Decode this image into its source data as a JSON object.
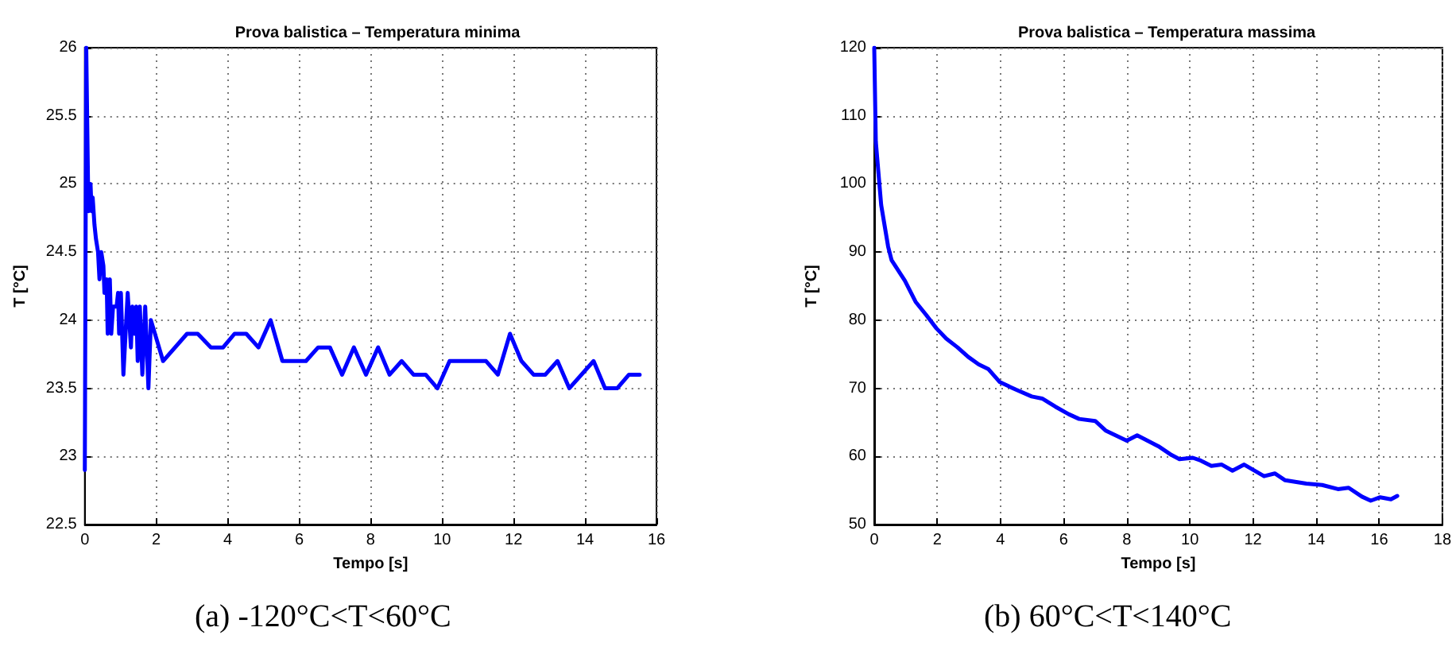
{
  "chart_data": [
    {
      "type": "line",
      "title": "Prova balistica – Temperatura minima",
      "xlabel": "Tempo [s]",
      "ylabel": "T [°C]",
      "annotations": [
        "(a) -120°C<T<60°C"
      ],
      "xlim": [
        0,
        16
      ],
      "xticks": [
        0,
        2,
        4,
        6,
        8,
        10,
        12,
        14,
        16
      ],
      "ylim": [
        22.5,
        26
      ],
      "yticks": [
        22.5,
        23,
        23.5,
        24,
        24.5,
        25,
        25.5,
        26
      ],
      "grid": true,
      "marker": "none",
      "line_style": "solid",
      "series": [
        {
          "color": "#0000ff",
          "x": [
            0,
            0.04,
            0.1,
            0.16,
            0.19,
            0.22,
            0.27,
            0.31,
            0.37,
            0.41,
            0.46,
            0.52,
            0.55,
            0.61,
            0.64,
            0.7,
            0.74,
            0.79,
            0.89,
            0.93,
            0.96,
            1.01,
            1.08,
            1.2,
            1.29,
            1.33,
            1.39,
            1.44,
            1.48,
            1.54,
            1.61,
            1.69,
            1.78,
            1.85,
            2.19,
            2.86,
            3.16,
            3.53,
            3.87,
            4.19,
            4.52,
            4.86,
            5.2,
            5.53,
            6.19,
            6.53,
            6.86,
            7.2,
            7.53,
            7.87,
            8.21,
            8.53,
            8.87,
            9.2,
            9.54,
            9.87,
            10.21,
            11.23,
            11.56,
            11.9,
            12.22,
            12.56,
            12.89,
            13.23,
            13.56,
            14.24,
            14.56,
            14.9,
            15.23,
            15.53
          ],
          "values": [
            22.9,
            26,
            24.8,
            25,
            24.8,
            24.9,
            24.7,
            24.6,
            24.5,
            24.3,
            24.5,
            24.4,
            24.2,
            24.3,
            23.9,
            24.3,
            23.9,
            24.1,
            24.1,
            24.2,
            23.9,
            24.2,
            23.6,
            24.2,
            23.8,
            24.1,
            23.9,
            24.1,
            23.7,
            24.1,
            23.6,
            24.1,
            23.5,
            24.0,
            23.7,
            23.9,
            23.9,
            23.8,
            23.8,
            23.9,
            23.9,
            23.8,
            24.0,
            23.7,
            23.7,
            23.8,
            23.8,
            23.6,
            23.8,
            23.6,
            23.8,
            23.6,
            23.7,
            23.6,
            23.6,
            23.5,
            23.7,
            23.7,
            23.6,
            23.9,
            23.7,
            23.6,
            23.6,
            23.7,
            23.5,
            23.7,
            23.5,
            23.5,
            23.6,
            23.6
          ]
        }
      ]
    },
    {
      "type": "line",
      "title": "Prova balistica – Temperatura massima",
      "xlabel": "Tempo [s]",
      "ylabel": "T [°C]",
      "annotations": [
        "(b) 60°C<T<140°C"
      ],
      "xlim": [
        0,
        18
      ],
      "xticks": [
        0,
        2,
        4,
        6,
        8,
        10,
        12,
        14,
        16,
        18
      ],
      "ylim": [
        50,
        120
      ],
      "yticks": [
        50,
        60,
        70,
        80,
        90,
        100,
        110,
        120
      ],
      "grid": true,
      "marker": "none",
      "line_style": "solid",
      "series": [
        {
          "color": "#0000ff",
          "x": [
            0,
            0.05,
            0.22,
            0.44,
            0.55,
            0.97,
            1.31,
            1.64,
            1.97,
            2.28,
            2.64,
            2.98,
            3.31,
            3.62,
            3.98,
            4.49,
            4.99,
            5.32,
            5.74,
            6.16,
            6.49,
            7,
            7.33,
            8,
            8.33,
            9,
            9.42,
            9.67,
            10.09,
            10.34,
            10.68,
            11.01,
            11.35,
            11.72,
            12.35,
            12.69,
            13.02,
            13.69,
            14.19,
            14.69,
            15.03,
            15.45,
            15.73,
            16.03,
            16.37,
            16.57
          ],
          "values": [
            120,
            106.2,
            96.9,
            90.8,
            88.8,
            85.8,
            82.7,
            80.8,
            78.8,
            77.3,
            76,
            74.6,
            73.5,
            72.8,
            70.9,
            69.8,
            68.8,
            68.5,
            67.3,
            66.2,
            65.5,
            65.2,
            63.8,
            62.3,
            63.1,
            61.5,
            60.2,
            59.6,
            59.8,
            59.4,
            58.6,
            58.8,
            57.9,
            58.8,
            57.1,
            57.5,
            56.5,
            56,
            55.8,
            55.2,
            55.4,
            54.1,
            53.5,
            54,
            53.7,
            54.2
          ]
        }
      ]
    }
  ]
}
